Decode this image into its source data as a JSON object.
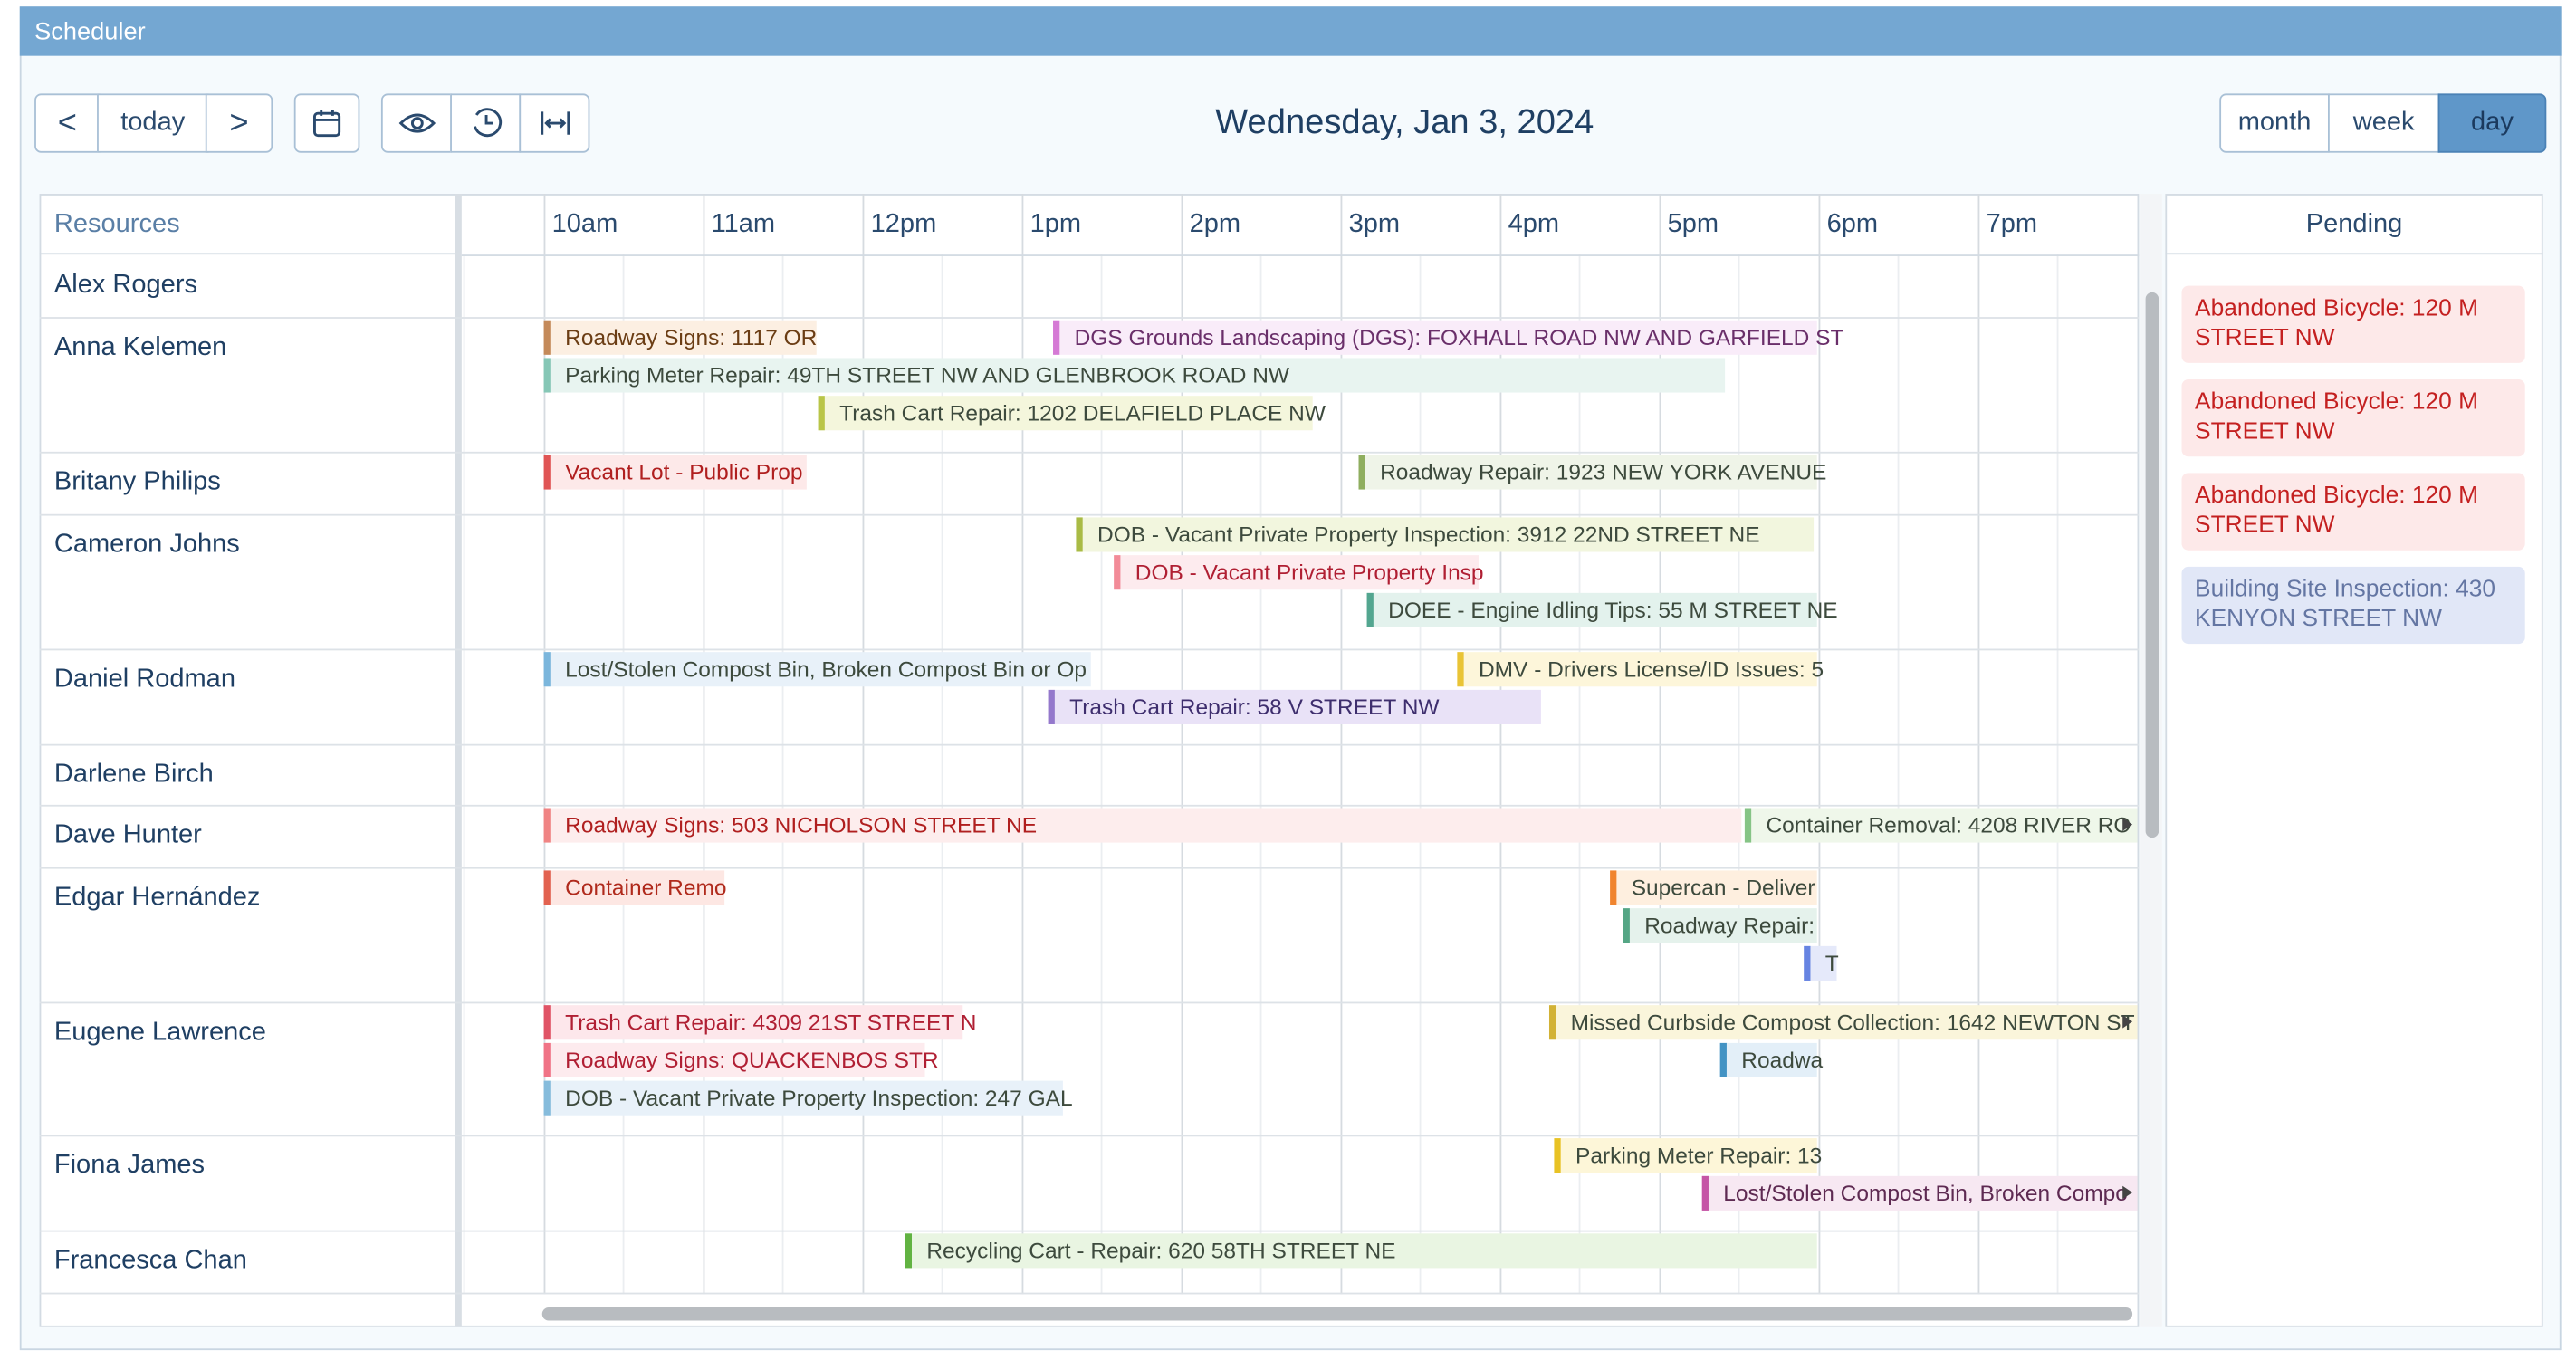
{
  "header": {
    "title": "Scheduler"
  },
  "toolbar": {
    "prev": "<",
    "today": "today",
    "next": ">",
    "date_title": "Wednesday, Jan 3, 2024",
    "views": [
      "month",
      "week",
      "day"
    ]
  },
  "grid": {
    "resources_header": "Resources",
    "times": [
      "10am",
      "11am",
      "12pm",
      "1pm",
      "2pm",
      "3pm",
      "4pm",
      "5pm",
      "6pm",
      "7pm"
    ],
    "pending_header": "Pending"
  },
  "resources": [
    {
      "name": "Alex Rogers",
      "events": []
    },
    {
      "name": "Anna Kelemen",
      "events": [
        "Roadway Signs: 1117 OR",
        "DGS Grounds Landscaping (DGS): FOXHALL ROAD NW AND GARFIELD ST",
        "Parking Meter Repair: 49TH STREET NW AND GLENBROOK ROAD NW",
        "Trash Cart Repair: 1202 DELAFIELD PLACE NW"
      ]
    },
    {
      "name": "Britany Philips",
      "events": [
        "Vacant Lot - Public Prop",
        "Roadway Repair: 1923 NEW YORK AVENUE"
      ]
    },
    {
      "name": "Cameron Johns",
      "events": [
        "DOB - Vacant Private Property Inspection: 3912 22ND STREET NE",
        "DOB - Vacant Private Property Insp",
        "DOEE - Engine Idling Tips: 55 M STREET NE"
      ]
    },
    {
      "name": "Daniel Rodman",
      "events": [
        "Lost/Stolen Compost Bin, Broken Compost Bin or Op",
        "DMV - Drivers License/ID Issues: 5",
        "Trash Cart Repair: 58 V STREET NW"
      ]
    },
    {
      "name": "Darlene Birch",
      "events": []
    },
    {
      "name": "Dave Hunter",
      "events": [
        "Roadway Signs: 503 NICHOLSON STREET NE",
        "Container Removal: 4208 RIVER RO"
      ]
    },
    {
      "name": "Edgar Hernández",
      "events": [
        "Container Remo",
        "Supercan - Deliver",
        "Roadway Repair:",
        "T"
      ]
    },
    {
      "name": "Eugene Lawrence",
      "events": [
        "Trash Cart Repair: 4309 21ST STREET N",
        "Roadway Signs: QUACKENBOS STR",
        "DOB - Vacant Private Property Inspection: 247 GAL",
        "Missed Curbside Compost Collection: 1642 NEWTON ST",
        "Roadwa"
      ]
    },
    {
      "name": "Fiona James",
      "events": [
        "Parking Meter Repair: 13",
        "Lost/Stolen Compost Bin, Broken Compo"
      ]
    },
    {
      "name": "Francesca Chan",
      "events": [
        "Recycling Cart - Repair: 620 58TH STREET NE"
      ]
    }
  ],
  "pending": [
    "Abandoned Bicycle: 120 M STREET NW",
    "Abandoned Bicycle: 120 M STREET NW",
    "Abandoned Bicycle: 120 M STREET NW",
    "Building Site Inspection: 430 KENYON STREET NW"
  ]
}
